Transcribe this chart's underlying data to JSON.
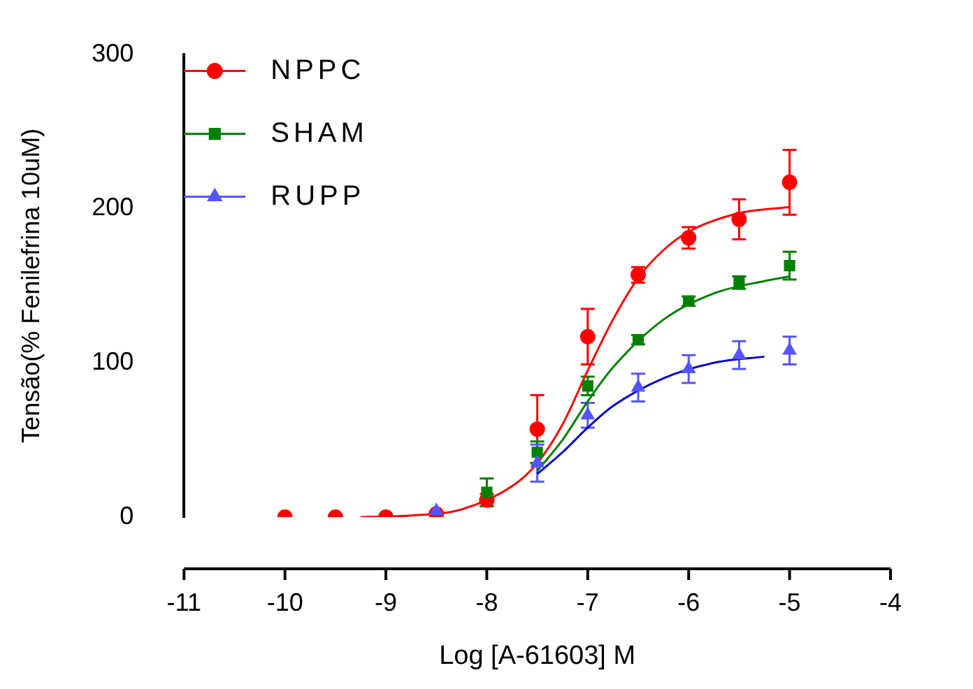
{
  "chart_data": {
    "type": "line",
    "xlabel": "Log [A-61603] M",
    "ylabel": "Tensão(% Fenilefrina 10uM)",
    "xlim": [
      -11,
      -4
    ],
    "xticks": [
      -11,
      -10,
      -9,
      -8,
      -7,
      -6,
      -5,
      -4
    ],
    "ylim": [
      0,
      300
    ],
    "yticks": [
      0,
      100,
      200,
      300
    ],
    "grid": false,
    "legend": "top left",
    "series": [
      {
        "name": "NPPC",
        "color": "#ff0000",
        "type": "scatter",
        "marker": "circle",
        "x": [
          -10,
          -9.5,
          -9,
          -8.5,
          -8,
          -7.5,
          -7,
          -6.5,
          -6,
          -5.5,
          -5
        ],
        "values": [
          0,
          0,
          0,
          2,
          11,
          57,
          117,
          157,
          181,
          193,
          217
        ],
        "errors": [
          null,
          null,
          null,
          null,
          4,
          22,
          18,
          5,
          7,
          13,
          21
        ]
      },
      {
        "name": "SHAM",
        "color": "#008000",
        "type": "scatter",
        "marker": "square",
        "x": [
          -8,
          -7.5,
          -7,
          -6.5,
          -6,
          -5.5,
          -5
        ],
        "values": [
          16,
          42,
          85,
          115,
          140,
          152,
          163
        ],
        "errors": [
          9,
          7,
          6,
          3,
          3,
          4,
          9
        ]
      },
      {
        "name": "RUPP",
        "color": "#5555ff",
        "type": "scatter",
        "marker": "triangle",
        "x": [
          -8.5,
          -7.5,
          -7,
          -6.5,
          -6,
          -5.5,
          -5
        ],
        "values": [
          4,
          35,
          66,
          84,
          96,
          105,
          108
        ],
        "errors": [
          null,
          12,
          8,
          9,
          9,
          9,
          9
        ]
      },
      {
        "color": "#ff0000",
        "type": "line",
        "marker": "none",
        "x": [
          -9.25,
          -8.75,
          -8.25,
          -7.75,
          -7.5,
          -7.25,
          -7,
          -6.75,
          -6.5,
          -6.25,
          -6,
          -5.5,
          -5
        ],
        "values": [
          0,
          1,
          5,
          20,
          35,
          60,
          95,
          128,
          155,
          173,
          185,
          197,
          201
        ]
      },
      {
        "color": "#008000",
        "type": "line",
        "marker": "none",
        "x": [
          -7.5,
          -7.25,
          -7,
          -6.75,
          -6.25,
          -5.75,
          -5.25,
          -5
        ],
        "values": [
          30,
          50,
          75,
          97,
          128,
          145,
          153,
          156
        ]
      },
      {
        "color": "#0000cc",
        "type": "line",
        "marker": "none",
        "x": [
          -7.5,
          -7.25,
          -7,
          -6.75,
          -6.25,
          -5.75,
          -5.25
        ],
        "values": [
          28,
          42,
          58,
          72,
          90,
          100,
          104
        ]
      }
    ]
  }
}
